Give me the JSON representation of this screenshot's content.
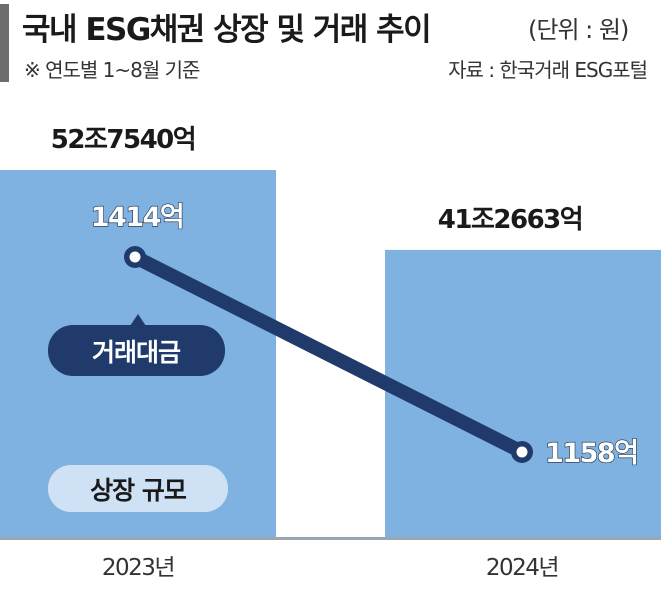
{
  "header": {
    "title": "국내 ESG채권 상장 및 거래 추이",
    "unit": "(단위 : 원)",
    "period_note": "※ 연도별 1~8월 기준",
    "source": "자료 : 한국거래 ESG포털"
  },
  "colors": {
    "bar": "#7fb2e0",
    "line": "#1f3a6b",
    "legend_line_bg": "#1f3a6b",
    "legend_bar_bg": "#cfe2f5",
    "text_dark": "#1a1a1a"
  },
  "chart_data": {
    "type": "bar+line",
    "categories": [
      "2023년",
      "2024년"
    ],
    "series": [
      {
        "name": "상장 규모",
        "type": "bar",
        "values": [
          527540,
          412663
        ],
        "labels": [
          "52조7540억",
          "41조2663억"
        ]
      },
      {
        "name": "거래대금",
        "type": "line",
        "values": [
          1414,
          1158
        ],
        "labels": [
          "1414억",
          "1158억"
        ]
      }
    ],
    "legend": {
      "line_label": "거래대금",
      "bar_label": "상장 규모",
      "placement": "inside-left"
    }
  }
}
